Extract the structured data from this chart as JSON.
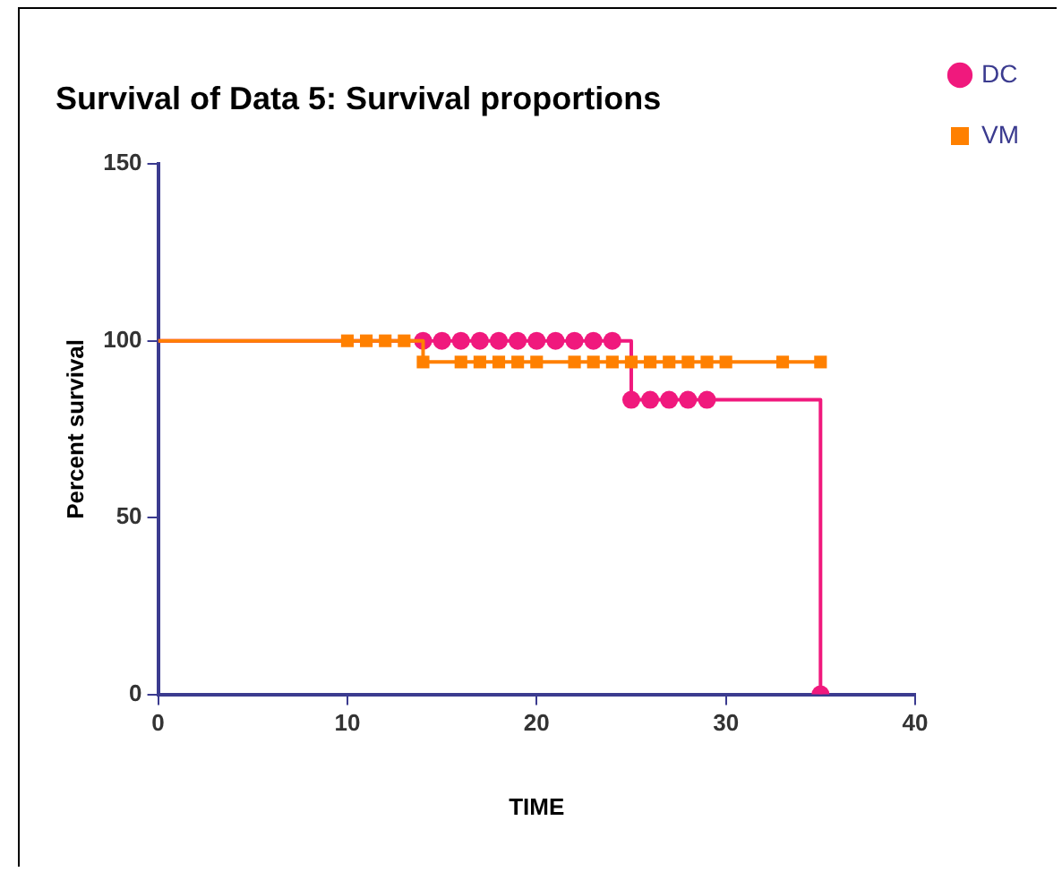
{
  "chart_data": {
    "type": "step",
    "title": "Survival of Data 5: Survival proportions",
    "xlabel": "TIME",
    "ylabel": "Percent survival",
    "xlim": [
      0,
      40
    ],
    "xticks": [
      0,
      10,
      20,
      30,
      40
    ],
    "ylim": [
      0,
      150
    ],
    "yticks": [
      0,
      50,
      100,
      150
    ],
    "grid": false,
    "legend": "top right",
    "series": [
      {
        "name": "DC",
        "color": "#f0197d",
        "marker": "none",
        "x": [
          0,
          25,
          35
        ],
        "values": [
          100,
          83.3,
          0
        ]
      },
      {
        "type": "scatter",
        "color": "#f0197d",
        "marker": "circle",
        "x": [
          14,
          15,
          16,
          17,
          18,
          19,
          20,
          21,
          22,
          23,
          24,
          25,
          26,
          27,
          28,
          29,
          35
        ],
        "values": [
          100,
          100,
          100,
          100,
          100,
          100,
          100,
          100,
          100,
          100,
          100,
          83.3,
          83.3,
          83.3,
          83.3,
          83.3,
          0
        ]
      },
      {
        "name": "VM",
        "color": "#ff8000",
        "marker": "none",
        "x": [
          0,
          14,
          35
        ],
        "values": [
          100,
          94,
          94
        ]
      },
      {
        "type": "scatter",
        "color": "#ff8000",
        "marker": "square",
        "x": [
          10,
          11,
          12,
          13,
          14,
          16,
          17,
          18,
          19,
          20,
          22,
          23,
          24,
          25,
          26,
          27,
          28,
          29,
          30,
          33,
          35
        ],
        "values": [
          100,
          100,
          100,
          100,
          94,
          94,
          94,
          94,
          94,
          94,
          94,
          94,
          94,
          94,
          94,
          94,
          94,
          94,
          94,
          94,
          94
        ]
      }
    ]
  }
}
